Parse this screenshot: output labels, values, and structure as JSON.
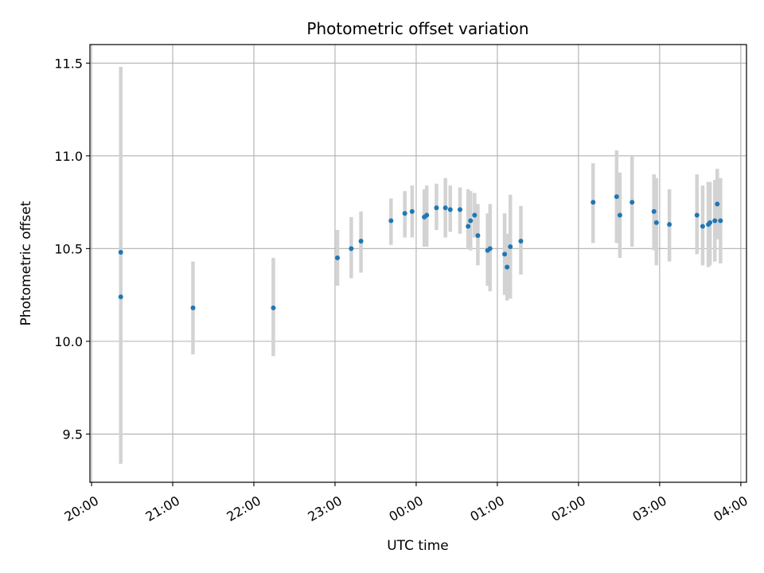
{
  "chart_data": {
    "type": "scatter",
    "title": "Photometric offset variation",
    "xlabel": "UTC time",
    "ylabel": "Photometric offset",
    "x_unit": "hours UTC (values > 24 are after midnight of the following day)",
    "xlim": [
      19.98,
      28.07
    ],
    "ylim": [
      9.24,
      11.6
    ],
    "x_ticks": [
      {
        "value": 20,
        "label": "20:00"
      },
      {
        "value": 21,
        "label": "21:00"
      },
      {
        "value": 22,
        "label": "22:00"
      },
      {
        "value": 23,
        "label": "23:00"
      },
      {
        "value": 24,
        "label": "00:00"
      },
      {
        "value": 25,
        "label": "01:00"
      },
      {
        "value": 26,
        "label": "02:00"
      },
      {
        "value": 27,
        "label": "03:00"
      },
      {
        "value": 28,
        "label": "04:00"
      }
    ],
    "y_ticks": [
      {
        "value": 9.5,
        "label": "9.5"
      },
      {
        "value": 10.0,
        "label": "10.0"
      },
      {
        "value": 10.5,
        "label": "10.5"
      },
      {
        "value": 11.0,
        "label": "11.0"
      },
      {
        "value": 11.5,
        "label": "11.5"
      }
    ],
    "grid": true,
    "colors": {
      "marker": "#1f77b4",
      "errorbar": "#d3d3d3",
      "grid": "#b0b0b0"
    },
    "points": [
      {
        "x": 20.36,
        "y": 10.48,
        "yerr_low": 9.49,
        "yerr_high": 11.48
      },
      {
        "x": 20.36,
        "y": 10.24,
        "yerr_low": 9.34,
        "yerr_high": 11.14
      },
      {
        "x": 21.25,
        "y": 10.18,
        "yerr_low": 9.93,
        "yerr_high": 10.43
      },
      {
        "x": 22.24,
        "y": 10.18,
        "yerr_low": 9.92,
        "yerr_high": 10.45
      },
      {
        "x": 23.03,
        "y": 10.45,
        "yerr_low": 10.3,
        "yerr_high": 10.6
      },
      {
        "x": 23.2,
        "y": 10.5,
        "yerr_low": 10.34,
        "yerr_high": 10.67
      },
      {
        "x": 23.32,
        "y": 10.54,
        "yerr_low": 10.37,
        "yerr_high": 10.7
      },
      {
        "x": 23.69,
        "y": 10.65,
        "yerr_low": 10.52,
        "yerr_high": 10.77
      },
      {
        "x": 23.86,
        "y": 10.69,
        "yerr_low": 10.56,
        "yerr_high": 10.81
      },
      {
        "x": 23.95,
        "y": 10.7,
        "yerr_low": 10.56,
        "yerr_high": 10.84
      },
      {
        "x": 24.1,
        "y": 10.67,
        "yerr_low": 10.51,
        "yerr_high": 10.82
      },
      {
        "x": 24.13,
        "y": 10.68,
        "yerr_low": 10.51,
        "yerr_high": 10.84
      },
      {
        "x": 24.25,
        "y": 10.72,
        "yerr_low": 10.6,
        "yerr_high": 10.85
      },
      {
        "x": 24.36,
        "y": 10.72,
        "yerr_low": 10.56,
        "yerr_high": 10.88
      },
      {
        "x": 24.42,
        "y": 10.71,
        "yerr_low": 10.59,
        "yerr_high": 10.84
      },
      {
        "x": 24.54,
        "y": 10.71,
        "yerr_low": 10.58,
        "yerr_high": 10.83
      },
      {
        "x": 24.64,
        "y": 10.62,
        "yerr_low": 10.5,
        "yerr_high": 10.82
      },
      {
        "x": 24.67,
        "y": 10.65,
        "yerr_low": 10.49,
        "yerr_high": 10.81
      },
      {
        "x": 24.72,
        "y": 10.68,
        "yerr_low": 10.56,
        "yerr_high": 10.8
      },
      {
        "x": 24.76,
        "y": 10.57,
        "yerr_low": 10.41,
        "yerr_high": 10.74
      },
      {
        "x": 24.88,
        "y": 10.49,
        "yerr_low": 10.3,
        "yerr_high": 10.69
      },
      {
        "x": 24.91,
        "y": 10.5,
        "yerr_low": 10.27,
        "yerr_high": 10.74
      },
      {
        "x": 25.09,
        "y": 10.47,
        "yerr_low": 10.25,
        "yerr_high": 10.69
      },
      {
        "x": 25.12,
        "y": 10.4,
        "yerr_low": 10.22,
        "yerr_high": 10.58
      },
      {
        "x": 25.16,
        "y": 10.51,
        "yerr_low": 10.23,
        "yerr_high": 10.79
      },
      {
        "x": 25.29,
        "y": 10.54,
        "yerr_low": 10.36,
        "yerr_high": 10.73
      },
      {
        "x": 26.18,
        "y": 10.75,
        "yerr_low": 10.53,
        "yerr_high": 10.96
      },
      {
        "x": 26.47,
        "y": 10.78,
        "yerr_low": 10.53,
        "yerr_high": 11.03
      },
      {
        "x": 26.51,
        "y": 10.68,
        "yerr_low": 10.45,
        "yerr_high": 10.91
      },
      {
        "x": 26.66,
        "y": 10.75,
        "yerr_low": 10.51,
        "yerr_high": 11.0
      },
      {
        "x": 26.93,
        "y": 10.7,
        "yerr_low": 10.49,
        "yerr_high": 10.9
      },
      {
        "x": 26.96,
        "y": 10.64,
        "yerr_low": 10.41,
        "yerr_high": 10.88
      },
      {
        "x": 27.12,
        "y": 10.63,
        "yerr_low": 10.43,
        "yerr_high": 10.82
      },
      {
        "x": 27.46,
        "y": 10.68,
        "yerr_low": 10.47,
        "yerr_high": 10.9
      },
      {
        "x": 27.53,
        "y": 10.62,
        "yerr_low": 10.41,
        "yerr_high": 10.84
      },
      {
        "x": 27.6,
        "y": 10.63,
        "yerr_low": 10.4,
        "yerr_high": 10.86
      },
      {
        "x": 27.62,
        "y": 10.64,
        "yerr_low": 10.41,
        "yerr_high": 10.86
      },
      {
        "x": 27.68,
        "y": 10.65,
        "yerr_low": 10.43,
        "yerr_high": 10.87
      },
      {
        "x": 27.71,
        "y": 10.74,
        "yerr_low": 10.55,
        "yerr_high": 10.93
      },
      {
        "x": 27.75,
        "y": 10.65,
        "yerr_low": 10.42,
        "yerr_high": 10.88
      }
    ]
  }
}
